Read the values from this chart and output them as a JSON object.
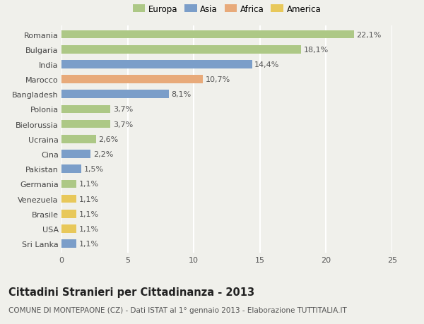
{
  "categories": [
    "Romania",
    "Bulgaria",
    "India",
    "Marocco",
    "Bangladesh",
    "Polonia",
    "Bielorussia",
    "Ucraina",
    "Cina",
    "Pakistan",
    "Germania",
    "Venezuela",
    "Brasile",
    "USA",
    "Sri Lanka"
  ],
  "values": [
    22.1,
    18.1,
    14.4,
    10.7,
    8.1,
    3.7,
    3.7,
    2.6,
    2.2,
    1.5,
    1.1,
    1.1,
    1.1,
    1.1,
    1.1
  ],
  "labels": [
    "22,1%",
    "18,1%",
    "14,4%",
    "10,7%",
    "8,1%",
    "3,7%",
    "3,7%",
    "2,6%",
    "2,2%",
    "1,5%",
    "1,1%",
    "1,1%",
    "1,1%",
    "1,1%",
    "1,1%"
  ],
  "continents": [
    "Europa",
    "Europa",
    "Asia",
    "Africa",
    "Asia",
    "Europa",
    "Europa",
    "Europa",
    "Asia",
    "Asia",
    "Europa",
    "America",
    "America",
    "America",
    "Asia"
  ],
  "colors": {
    "Europa": "#adc886",
    "Asia": "#7b9ec9",
    "Africa": "#e8aa7a",
    "America": "#e8c85a"
  },
  "xlim": [
    0,
    25
  ],
  "xticks": [
    0,
    5,
    10,
    15,
    20,
    25
  ],
  "title": "Cittadini Stranieri per Cittadinanza - 2013",
  "subtitle": "COMUNE DI MONTEPAONE (CZ) - Dati ISTAT al 1° gennaio 2013 - Elaborazione TUTTITALIA.IT",
  "background_color": "#f0f0eb",
  "grid_color": "#ffffff",
  "bar_height": 0.55,
  "title_fontsize": 10.5,
  "subtitle_fontsize": 7.5,
  "label_fontsize": 8,
  "tick_fontsize": 8,
  "legend_fontsize": 8.5,
  "legend_order": [
    "Europa",
    "Asia",
    "Africa",
    "America"
  ]
}
